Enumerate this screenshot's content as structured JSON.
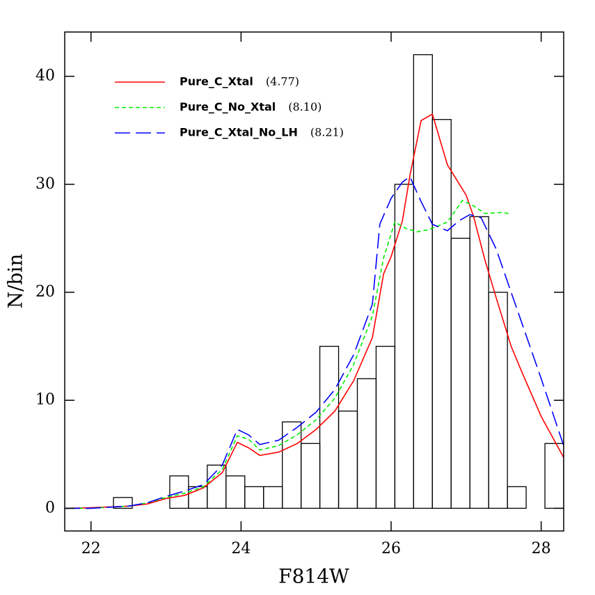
{
  "chart_data": {
    "type": "histogram",
    "xlabel": "F814W",
    "ylabel": "N/bin",
    "xlim": [
      21.65,
      28.3
    ],
    "ylim": [
      -2.1,
      44.1
    ],
    "xticks": [
      22,
      24,
      26,
      28
    ],
    "yticks": [
      0,
      10,
      20,
      30,
      40
    ],
    "hist_color": "#000000",
    "bins": [
      21.55,
      21.8,
      22.05,
      22.3,
      22.55,
      22.8,
      23.05,
      23.3,
      23.55,
      23.8,
      24.05,
      24.3,
      24.55,
      24.8,
      25.05,
      25.3,
      25.55,
      25.8,
      26.05,
      26.3,
      26.55,
      26.8,
      27.05,
      27.3,
      27.55,
      27.8,
      28.05,
      28.3
    ],
    "counts": [
      0,
      0,
      0,
      1,
      0,
      0,
      3,
      2,
      4,
      3,
      2,
      2,
      8,
      6,
      15,
      9,
      12,
      15,
      30,
      42,
      36,
      25,
      27,
      20,
      2,
      0,
      6
    ],
    "series": [
      {
        "name": "Pure_C_Xtal",
        "note": "(4.77)",
        "color": "#ff0000",
        "dash": "none",
        "x": [
          21.65,
          22.0,
          22.5,
          22.75,
          23.0,
          23.25,
          23.5,
          23.75,
          23.95,
          24.1,
          24.25,
          24.5,
          24.75,
          25.0,
          25.25,
          25.5,
          25.75,
          25.9,
          26.0,
          26.15,
          26.25,
          26.4,
          26.55,
          26.75,
          27.0,
          27.1,
          27.25,
          27.4,
          27.6,
          27.75,
          28.0,
          28.3
        ],
        "values": [
          0,
          0.05,
          0.2,
          0.4,
          0.9,
          1.2,
          1.9,
          3.3,
          6.1,
          5.6,
          4.9,
          5.2,
          6.0,
          7.3,
          9.0,
          11.8,
          15.8,
          21.7,
          23.3,
          26.6,
          30.8,
          35.9,
          36.5,
          31.8,
          29.0,
          27.0,
          23.0,
          19.5,
          15.0,
          12.5,
          8.5,
          4.7
        ]
      },
      {
        "name": "Pure_C_No_Xtal",
        "note": "(8.10)",
        "color": "#00ee00",
        "dash": "6 4",
        "x": [
          21.65,
          22.0,
          22.5,
          22.75,
          23.0,
          23.25,
          23.5,
          23.75,
          23.95,
          24.1,
          24.25,
          24.5,
          24.75,
          25.0,
          25.25,
          25.5,
          25.75,
          25.9,
          26.05,
          26.2,
          26.35,
          26.5,
          26.75,
          26.95,
          27.1,
          27.25,
          27.5,
          27.6
        ],
        "values": [
          0,
          0,
          0.2,
          0.5,
          1.0,
          1.4,
          2.0,
          3.6,
          6.7,
          6.4,
          5.4,
          5.8,
          6.8,
          8.2,
          10.2,
          13.3,
          17.8,
          23.2,
          26.5,
          25.9,
          25.6,
          25.8,
          26.5,
          28.5,
          28.0,
          27.3,
          27.4,
          27.2
        ]
      },
      {
        "name": "Pure_C_Xtal_No_LH",
        "note": "(8.21)",
        "color": "#0000ff",
        "dash": "22 8",
        "x": [
          21.65,
          22.0,
          22.5,
          22.75,
          23.0,
          23.25,
          23.5,
          23.75,
          23.95,
          24.1,
          24.25,
          24.5,
          24.75,
          25.0,
          25.25,
          25.5,
          25.75,
          25.85,
          26.0,
          26.15,
          26.25,
          26.4,
          26.55,
          26.75,
          26.9,
          27.05,
          27.2,
          27.4,
          27.6,
          27.8,
          28.0,
          28.3
        ],
        "values": [
          0,
          0,
          0.2,
          0.5,
          1.1,
          1.6,
          2.2,
          4.0,
          7.3,
          6.8,
          5.9,
          6.3,
          7.5,
          8.9,
          11.0,
          14.2,
          18.9,
          26.3,
          28.7,
          30.2,
          30.7,
          28.4,
          26.3,
          25.7,
          26.6,
          27.2,
          26.9,
          24.0,
          20.0,
          16.0,
          12.0,
          5.8
        ]
      }
    ]
  }
}
